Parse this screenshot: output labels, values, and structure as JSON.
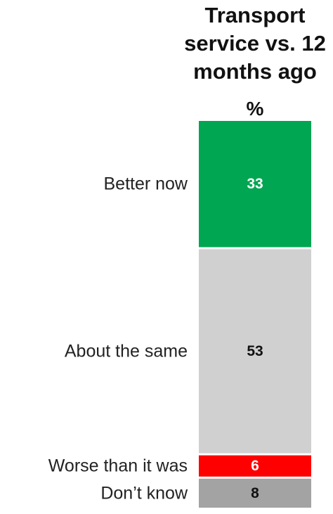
{
  "chart_data": {
    "type": "bar",
    "stacked": true,
    "orientation": "vertical",
    "title_lines": [
      "Transport",
      "service vs. 12",
      "months ago"
    ],
    "unit": "%",
    "categories": [
      "Better now",
      "About the same",
      "Worse than it was",
      "Don’t know"
    ],
    "values": [
      33,
      53,
      6,
      8
    ],
    "colors": [
      "#00a651",
      "#d1d0d0",
      "#ff0000",
      "#a3a3a3"
    ],
    "label_colors": [
      "#ffffff",
      "#111111",
      "#ffffff",
      "#111111"
    ],
    "total": 100
  }
}
